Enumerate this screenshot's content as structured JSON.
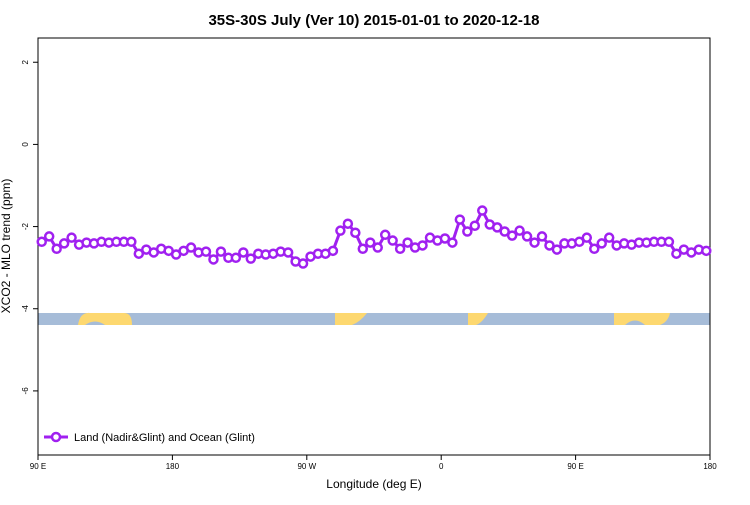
{
  "chart_data": {
    "type": "line",
    "title": "35S-30S July (Ver 10)   2015-01-01 to 2020-12-18",
    "x_label": "Longitude (deg E)",
    "y_label": "XCO2 - MLO trend (ppm)",
    "xlim": [
      90,
      540
    ],
    "xticks": [
      {
        "value": 90,
        "label": "90 E"
      },
      {
        "value": 180,
        "label": "180"
      },
      {
        "value": 270,
        "label": "90 W"
      },
      {
        "value": 360,
        "label": "0"
      },
      {
        "value": 450,
        "label": "90 E"
      },
      {
        "value": 540,
        "label": "180"
      }
    ],
    "ylim": [
      -7.56,
      2.59
    ],
    "yticks": [
      -6,
      -4,
      -2,
      0,
      2
    ],
    "legend": "bottom-left",
    "x": [
      92.5,
      97.5,
      102.5,
      107.5,
      112.5,
      117.5,
      122.5,
      127.5,
      132.5,
      137.5,
      142.5,
      147.5,
      152.5,
      157.5,
      162.5,
      167.5,
      172.5,
      177.5,
      182.5,
      187.5,
      192.5,
      197.5,
      202.5,
      207.5,
      212.5,
      217.5,
      222.5,
      227.5,
      232.5,
      237.5,
      242.5,
      247.5,
      252.5,
      257.5,
      262.5,
      267.5,
      272.5,
      277.5,
      282.5,
      287.5,
      292.5,
      297.5,
      302.5,
      307.5,
      312.5,
      317.5,
      322.5,
      327.5,
      332.5,
      337.5,
      342.5,
      347.5,
      352.5,
      357.5,
      362.5,
      367.5,
      372.5,
      377.5,
      382.5,
      387.5,
      392.5,
      397.5,
      402.5,
      407.5,
      412.5,
      417.5,
      422.5,
      427.5,
      432.5,
      437.5,
      442.5,
      447.5,
      452.5,
      457.5,
      462.5,
      467.5,
      472.5,
      477.5,
      482.5,
      487.5,
      492.5,
      497.5,
      502.5,
      507.5,
      512.5,
      517.5,
      522.5,
      527.5,
      532.5,
      537.5
    ],
    "series": [
      {
        "name": "Land (Nadir&Glint) and Ocean (Glint)",
        "color": "#a020f0",
        "values": [
          -2.37,
          -2.24,
          -2.54,
          -2.41,
          -2.27,
          -2.44,
          -2.39,
          -2.41,
          -2.37,
          -2.39,
          -2.37,
          -2.37,
          -2.37,
          -2.66,
          -2.56,
          -2.63,
          -2.54,
          -2.59,
          -2.68,
          -2.59,
          -2.51,
          -2.63,
          -2.61,
          -2.8,
          -2.61,
          -2.76,
          -2.76,
          -2.63,
          -2.78,
          -2.66,
          -2.68,
          -2.66,
          -2.61,
          -2.63,
          -2.85,
          -2.9,
          -2.73,
          -2.66,
          -2.66,
          -2.59,
          -2.1,
          -1.93,
          -2.15,
          -2.54,
          -2.39,
          -2.51,
          -2.2,
          -2.34,
          -2.54,
          -2.39,
          -2.51,
          -2.46,
          -2.27,
          -2.34,
          -2.29,
          -2.39,
          -1.83,
          -2.12,
          -1.98,
          -1.61,
          -1.95,
          -2.02,
          -2.12,
          -2.22,
          -2.1,
          -2.24,
          -2.39,
          -2.24,
          -2.46,
          -2.56,
          -2.41,
          -2.41,
          -2.37,
          -2.27,
          -2.54,
          -2.41,
          -2.27,
          -2.46,
          -2.41,
          -2.44,
          -2.39,
          -2.39,
          -2.37,
          -2.37,
          -2.37,
          -2.66,
          -2.56,
          -2.63,
          -2.56,
          -2.59
        ]
      }
    ]
  }
}
